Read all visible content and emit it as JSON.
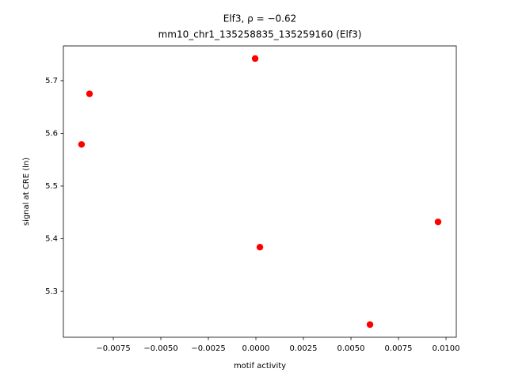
{
  "chart_data": {
    "type": "scatter",
    "title": "Elf3, ρ = −0.62",
    "subtitle": "mm10_chr1_135258835_135259160 (Elf3)",
    "x_label": "motif activity",
    "y_label": "signal at CRE (ln)",
    "color": "#ff0000",
    "x": [
      -4e-05,
      -0.00875,
      -0.00917,
      0.00021,
      0.00958,
      0.006
    ],
    "values": [
      5.742,
      5.675,
      5.579,
      5.384,
      5.432,
      5.237
    ],
    "xlim": [
      -0.010125,
      0.01054
    ],
    "ylim": [
      5.213,
      5.766
    ],
    "xticks": [
      {
        "value": -0.0075,
        "label": "−0.0075"
      },
      {
        "value": -0.005,
        "label": "−0.0050"
      },
      {
        "value": -0.0025,
        "label": "−0.0025"
      },
      {
        "value": 0,
        "label": "0.0000"
      },
      {
        "value": 0.0025,
        "label": "0.0025"
      },
      {
        "value": 0.005,
        "label": "0.0050"
      },
      {
        "value": 0.0075,
        "label": "0.0075"
      },
      {
        "value": 0.01,
        "label": "0.0100"
      }
    ],
    "yticks": [
      5.3,
      5.4,
      5.5,
      5.6,
      5.7
    ]
  }
}
